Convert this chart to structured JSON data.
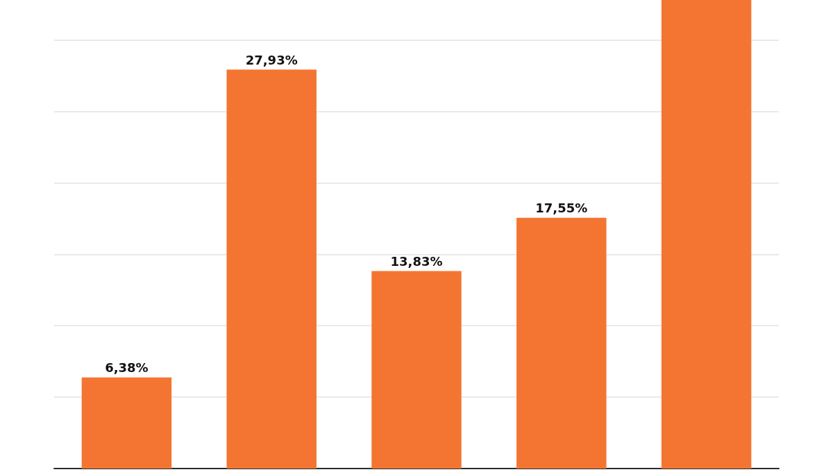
{
  "chart_data": {
    "type": "bar",
    "categories": [
      null,
      null,
      null,
      null,
      null
    ],
    "values": [
      6.38,
      27.93,
      13.83,
      17.55,
      32.8
    ],
    "value_labels": [
      "6,38%",
      "27,93%",
      "13,83%",
      "17,55%",
      null
    ],
    "color": "#f47532",
    "ylim": [
      0,
      32.8
    ],
    "yticks": [
      {
        "value": 0,
        "label": null
      },
      {
        "value": 5,
        "label": null
      },
      {
        "value": 10,
        "label": null
      },
      {
        "value": 15,
        "label": null
      },
      {
        "value": 20,
        "label": null
      },
      {
        "value": 25,
        "label": null
      },
      {
        "value": 30,
        "label": null
      }
    ],
    "grid": "y",
    "tick_labels": false
  }
}
